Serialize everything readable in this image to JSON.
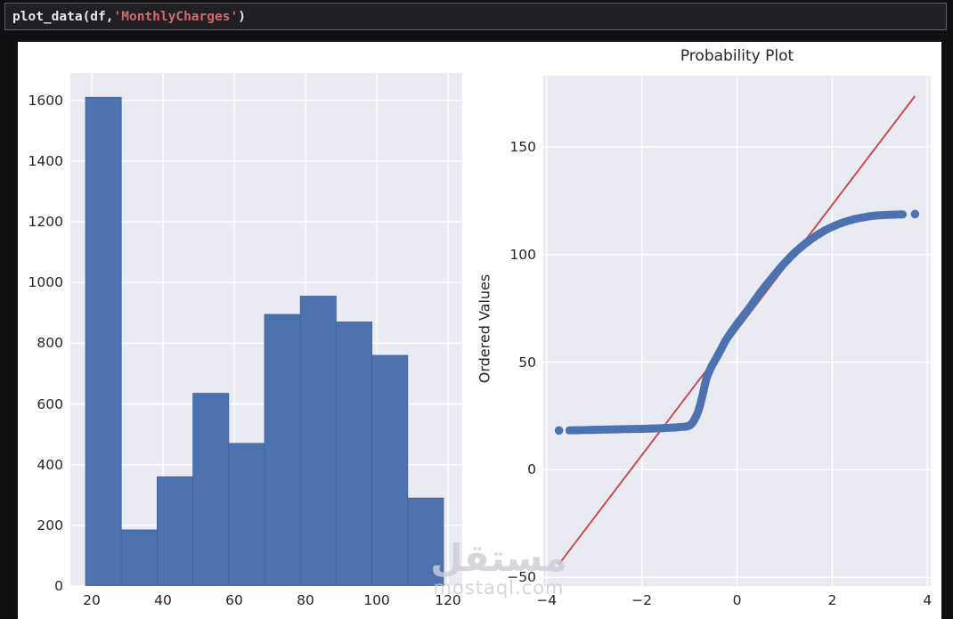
{
  "code_cell": {
    "segments": [
      {
        "text": "plot_data(df,",
        "type": "plain"
      },
      {
        "text": "'MonthlyCharges'",
        "type": "string"
      },
      {
        "text": ")",
        "type": "plain"
      }
    ]
  },
  "watermark": {
    "logo": "مستقل",
    "domain": "mostaql.com"
  },
  "colors": {
    "page_background": "#101013",
    "cell_background": "#202024",
    "cell_border": "#5f5f60",
    "figure_background": "#ffffff",
    "axes_background": "#eaeaf2",
    "grid": "#ffffff",
    "bar": "#4c72b0",
    "bar_edge": "#3f63a0",
    "dot": "#4c72b0",
    "fit_line": "#c44e52",
    "text": "#262626"
  },
  "chart_data": [
    {
      "type": "bar",
      "subtype": "histogram",
      "title": "",
      "xlabel": "",
      "ylabel": "",
      "bin_edges": [
        18.25,
        28.3,
        38.35,
        48.4,
        58.45,
        68.5,
        78.55,
        88.6,
        98.65,
        108.7,
        118.75
      ],
      "counts": [
        1610,
        185,
        360,
        635,
        470,
        895,
        955,
        870,
        760,
        290
      ],
      "xticks": [
        20,
        40,
        60,
        80,
        100,
        120
      ],
      "yticks": [
        0,
        200,
        400,
        600,
        800,
        1000,
        1200,
        1400,
        1600
      ],
      "xlim": [
        14,
        124
      ],
      "ylim": [
        0,
        1690
      ],
      "grid": true,
      "legend": false
    },
    {
      "type": "scatter",
      "subtype": "probability-plot",
      "title": "Probability Plot",
      "xlabel": "",
      "ylabel": "Ordered Values",
      "xticks": [
        -4,
        -2,
        0,
        2,
        4
      ],
      "yticks": [
        -50,
        0,
        50,
        100,
        150
      ],
      "xlim": [
        -4.07,
        4.07
      ],
      "ylim": [
        -54,
        183
      ],
      "grid": true,
      "legend": false,
      "fit_line": {
        "x1": -3.74,
        "y1": -43.8,
        "x2": 3.74,
        "y2": 173.6,
        "slope": 29.06,
        "intercept": 64.9
      },
      "isolated_points": [
        [
          -3.74,
          18.25
        ],
        [
          3.74,
          118.75
        ]
      ],
      "curve_points": [
        [
          -3.52,
          18.3
        ],
        [
          -3.2,
          18.45
        ],
        [
          -2.9,
          18.6
        ],
        [
          -2.6,
          18.75
        ],
        [
          -2.3,
          18.9
        ],
        [
          -2.0,
          19.0
        ],
        [
          -1.8,
          19.15
        ],
        [
          -1.6,
          19.3
        ],
        [
          -1.45,
          19.45
        ],
        [
          -1.3,
          19.65
        ],
        [
          -1.2,
          19.8
        ],
        [
          -1.1,
          20.0
        ],
        [
          -1.02,
          20.3
        ],
        [
          -0.97,
          21.0
        ],
        [
          -0.93,
          22.0
        ],
        [
          -0.89,
          23.5
        ],
        [
          -0.85,
          25.2
        ],
        [
          -0.81,
          27.5
        ],
        [
          -0.77,
          30.5
        ],
        [
          -0.73,
          34.0
        ],
        [
          -0.7,
          37.0
        ],
        [
          -0.67,
          40.0
        ],
        [
          -0.64,
          42.5
        ],
        [
          -0.6,
          44.8
        ],
        [
          -0.56,
          46.8
        ],
        [
          -0.52,
          48.7
        ],
        [
          -0.47,
          50.5
        ],
        [
          -0.42,
          52.5
        ],
        [
          -0.36,
          55.0
        ],
        [
          -0.3,
          57.5
        ],
        [
          -0.24,
          60.0
        ],
        [
          -0.18,
          62.0
        ],
        [
          -0.12,
          64.0
        ],
        [
          -0.06,
          65.8
        ],
        [
          0.0,
          67.7
        ],
        [
          0.08,
          70.0
        ],
        [
          0.16,
          72.3
        ],
        [
          0.24,
          74.6
        ],
        [
          0.32,
          77.0
        ],
        [
          0.4,
          79.5
        ],
        [
          0.48,
          82.0
        ],
        [
          0.56,
          84.3
        ],
        [
          0.65,
          86.8
        ],
        [
          0.75,
          89.5
        ],
        [
          0.85,
          92.2
        ],
        [
          0.95,
          94.8
        ],
        [
          1.05,
          97.2
        ],
        [
          1.15,
          99.5
        ],
        [
          1.25,
          101.6
        ],
        [
          1.35,
          103.5
        ],
        [
          1.45,
          105.3
        ],
        [
          1.55,
          107.0
        ],
        [
          1.65,
          108.5
        ],
        [
          1.75,
          109.9
        ],
        [
          1.85,
          111.2
        ],
        [
          1.95,
          112.3
        ],
        [
          2.05,
          113.3
        ],
        [
          2.15,
          114.2
        ],
        [
          2.25,
          115.0
        ],
        [
          2.35,
          115.7
        ],
        [
          2.45,
          116.3
        ],
        [
          2.55,
          116.8
        ],
        [
          2.65,
          117.2
        ],
        [
          2.75,
          117.6
        ],
        [
          2.85,
          117.9
        ],
        [
          2.95,
          118.1
        ],
        [
          3.1,
          118.3
        ],
        [
          3.25,
          118.45
        ],
        [
          3.4,
          118.55
        ],
        [
          3.52,
          118.6
        ]
      ]
    }
  ]
}
